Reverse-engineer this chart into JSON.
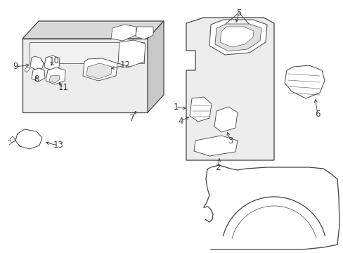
{
  "bg_color": "#ffffff",
  "line_color": "#404040",
  "shade_light": "#ececec",
  "shade_mid": "#d8d8d8",
  "fig_width": 4.89,
  "fig_height": 3.6,
  "dpi": 100
}
